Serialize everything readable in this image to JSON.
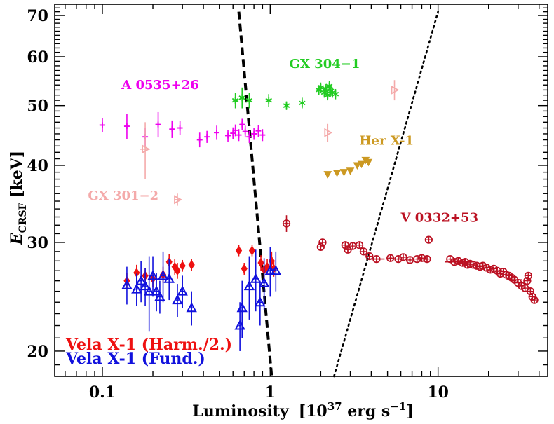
{
  "chart_data": {
    "type": "scatter",
    "xscale": "log",
    "yscale": "log",
    "xlim": [
      0.052,
      45
    ],
    "ylim": [
      18.2,
      73
    ],
    "xlabel_main": "Luminosity",
    "xlabel_unit": "[10",
    "xlabel_exp": "37",
    "xlabel_unit2": " erg s",
    "xlabel_exp2": "−1",
    "xlabel_close": "]",
    "ylabel_main": "E",
    "ylabel_sub": "CRSF",
    "ylabel_unit": " [keV]",
    "xticks": [
      {
        "value": 0.1,
        "label": "0.1"
      },
      {
        "value": 1,
        "label": "1"
      },
      {
        "value": 10,
        "label": "10"
      }
    ],
    "yticks": [
      {
        "value": 20,
        "label": "20"
      },
      {
        "value": 30,
        "label": "30"
      },
      {
        "value": 40,
        "label": "40"
      },
      {
        "value": 50,
        "label": "50"
      },
      {
        "value": 60,
        "label": "60"
      },
      {
        "value": 70,
        "label": "70"
      }
    ],
    "lines": [
      {
        "style": "dashed",
        "points": [
          [
            0.65,
            71
          ],
          [
            1.02,
            18.2
          ]
        ]
      },
      {
        "style": "dotted",
        "points": [
          [
            2.4,
            18.2
          ],
          [
            10.0,
            71
          ]
        ]
      }
    ],
    "series": [
      {
        "label": "A 0535+26",
        "color": "#ee00ee",
        "marker": "plus",
        "label_pos": [
          0.13,
          53.2
        ],
        "label_anchor": "start",
        "points": [
          [
            0.1,
            46.5,
            0.004,
            1.2
          ],
          [
            0.14,
            46.3,
            0.004,
            2.2
          ],
          [
            0.18,
            44.5,
            0.005,
            1.5
          ],
          [
            0.215,
            46.6,
            0.006,
            2.2
          ],
          [
            0.26,
            45.8,
            0.008,
            1.5
          ],
          [
            0.29,
            46.0,
            0.01,
            1.2
          ],
          [
            0.38,
            44.0,
            0.01,
            1.2
          ],
          [
            0.42,
            44.5,
            0.01,
            1.0
          ],
          [
            0.48,
            45.2,
            0.01,
            1.2
          ],
          [
            0.56,
            44.7,
            0.012,
            1.0
          ],
          [
            0.6,
            45.1,
            0.012,
            1.0
          ],
          [
            0.62,
            45.6,
            0.02,
            1.0
          ],
          [
            0.65,
            44.8,
            0.02,
            1.0
          ],
          [
            0.68,
            46.6,
            0.02,
            1.0
          ],
          [
            0.71,
            45.4,
            0.02,
            1.0
          ],
          [
            0.75,
            44.5,
            0.03,
            1.0
          ],
          [
            0.8,
            45.0,
            0.03,
            1.0
          ],
          [
            0.85,
            45.5,
            0.03,
            1.0
          ],
          [
            0.9,
            44.8,
            0.03,
            1.0
          ]
        ]
      },
      {
        "label": "GX 304−1",
        "color": "#22cc22",
        "marker": "star",
        "label_pos": [
          1.3,
          57.5
        ],
        "label_anchor": "start",
        "points": [
          [
            0.62,
            51.0,
            0.02,
            1.5
          ],
          [
            0.68,
            51.5,
            0.02,
            2.0
          ],
          [
            0.75,
            51.0,
            0.02,
            1.5
          ],
          [
            0.98,
            51.0,
            0.02,
            1.2
          ],
          [
            1.25,
            50.0,
            0.03,
            0.8
          ],
          [
            1.55,
            50.5,
            0.03,
            1.0
          ],
          [
            1.95,
            53.0,
            0.04,
            1.0
          ],
          [
            2.0,
            53.5,
            0.04,
            1.0
          ],
          [
            2.1,
            52.5,
            0.04,
            1.0
          ],
          [
            2.15,
            53.2,
            0.04,
            1.0
          ],
          [
            2.2,
            52.0,
            0.04,
            1.0
          ],
          [
            2.25,
            53.8,
            0.04,
            1.0
          ],
          [
            2.3,
            52.8,
            0.04,
            1.0
          ],
          [
            2.35,
            52.5,
            0.04,
            1.0
          ],
          [
            2.45,
            52.2,
            0.04,
            1.0
          ]
        ]
      },
      {
        "label": "Her X-1",
        "color": "#cc9922",
        "marker": "triangle-down",
        "label_pos": [
          3.4,
          43.2
        ],
        "label_anchor": "start",
        "points": [
          [
            2.2,
            38.7,
            0.05,
            0.4
          ],
          [
            2.5,
            38.9,
            0.05,
            0.4
          ],
          [
            2.75,
            39.0,
            0.05,
            0.4
          ],
          [
            3.0,
            39.2,
            0.05,
            0.4
          ],
          [
            3.3,
            40.0,
            0.05,
            0.4
          ],
          [
            3.5,
            40.2,
            0.05,
            0.4
          ],
          [
            3.7,
            40.8,
            0.05,
            0.4
          ],
          [
            3.85,
            40.5,
            0.05,
            0.4
          ]
        ]
      },
      {
        "label": "GX 301−2",
        "color": "#f4aaaa",
        "marker": "triangle-right",
        "label_pos": [
          0.082,
          35.2
        ],
        "label_anchor": "start",
        "points": [
          [
            0.18,
            42.5,
            0.012,
            4.5
          ],
          [
            0.28,
            35.2,
            0.008,
            0.8
          ],
          [
            2.2,
            45.2,
            0.02,
            1.5
          ],
          [
            5.5,
            53.0,
            0.02,
            2.0
          ]
        ]
      },
      {
        "label": "V 0332+53",
        "color": "#bb1122",
        "marker": "circle-plus",
        "label_pos": [
          6.0,
          32.4
        ],
        "label_anchor": "start",
        "points": [
          [
            1.25,
            32.2,
            0.02,
            1.0
          ],
          [
            2.0,
            29.5,
            0.02,
            0.4
          ],
          [
            2.05,
            30.0,
            0.02,
            0.4
          ],
          [
            2.8,
            29.7,
            0.03,
            0.3
          ],
          [
            2.9,
            29.2,
            0.03,
            0.3
          ],
          [
            3.1,
            29.6,
            0.03,
            0.3
          ],
          [
            3.4,
            29.7,
            0.03,
            0.3
          ],
          [
            3.6,
            29.0,
            0.03,
            0.3
          ],
          [
            3.9,
            28.5,
            0.03,
            0.3
          ],
          [
            4.3,
            28.2,
            0.5,
            0.3
          ],
          [
            5.2,
            28.3,
            0.1,
            0.3
          ],
          [
            5.8,
            28.2,
            0.1,
            0.3
          ],
          [
            6.2,
            28.4,
            0.1,
            0.3
          ],
          [
            6.8,
            28.1,
            0.1,
            0.3
          ],
          [
            7.5,
            28.2,
            0.1,
            0.3
          ],
          [
            8.0,
            28.3,
            0.1,
            0.3
          ],
          [
            8.6,
            28.2,
            0.1,
            0.3
          ],
          [
            8.8,
            30.3,
            0.1,
            0.4
          ],
          [
            11.8,
            28.2,
            0.2,
            0.3
          ],
          [
            12.5,
            27.9,
            1.5,
            0.3
          ],
          [
            13.2,
            28.0,
            0.2,
            0.3
          ],
          [
            14.0,
            27.8,
            0.2,
            0.3
          ],
          [
            14.5,
            27.9,
            0.2,
            0.3
          ],
          [
            15.0,
            27.6,
            0.2,
            0.3
          ],
          [
            15.5,
            27.7,
            0.2,
            0.3
          ],
          [
            16.2,
            27.6,
            0.2,
            0.3
          ],
          [
            17.0,
            27.5,
            0.2,
            0.3
          ],
          [
            17.8,
            27.4,
            0.2,
            0.3
          ],
          [
            18.5,
            27.5,
            0.2,
            0.3
          ],
          [
            19.5,
            27.3,
            0.2,
            0.3
          ],
          [
            20.5,
            27.1,
            0.2,
            0.3
          ],
          [
            21.5,
            27.2,
            0.2,
            0.3
          ],
          [
            22.5,
            27.0,
            0.2,
            0.3
          ],
          [
            23.5,
            26.7,
            0.2,
            0.3
          ],
          [
            24.5,
            26.9,
            0.2,
            0.3
          ],
          [
            25.5,
            26.6,
            0.2,
            0.3
          ],
          [
            26.5,
            26.5,
            0.2,
            0.3
          ],
          [
            27.5,
            26.3,
            0.2,
            0.3
          ],
          [
            28.5,
            26.1,
            3.0,
            0.3
          ],
          [
            30.0,
            25.8,
            0.2,
            0.3
          ],
          [
            31.5,
            25.5,
            0.2,
            0.3
          ],
          [
            33.0,
            25.3,
            0.2,
            0.3
          ],
          [
            34.0,
            26.0,
            0.2,
            0.3
          ],
          [
            34.5,
            26.5,
            0.2,
            0.3
          ],
          [
            35.5,
            25.0,
            0.2,
            0.3
          ],
          [
            36.5,
            24.5,
            0.2,
            0.3
          ],
          [
            37.5,
            24.2,
            0.2,
            0.3
          ]
        ]
      },
      {
        "label": "Vela X-1 (Harm./2.)",
        "color": "#ee1111",
        "marker": "diamond",
        "legend": true,
        "points": [
          [
            0.14,
            26.0,
            0.003,
            0.8
          ],
          [
            0.16,
            26.8,
            0.003,
            0.8
          ],
          [
            0.18,
            26.5,
            0.004,
            0.8
          ],
          [
            0.2,
            26.2,
            0.004,
            0.8
          ],
          [
            0.23,
            26.6,
            0.004,
            0.8
          ],
          [
            0.25,
            27.9,
            0.005,
            0.8
          ],
          [
            0.27,
            27.4,
            0.005,
            0.8
          ],
          [
            0.28,
            27.0,
            0.005,
            0.8
          ],
          [
            0.3,
            27.5,
            0.006,
            0.6
          ],
          [
            0.34,
            27.6,
            0.007,
            0.6
          ],
          [
            0.65,
            29.1,
            0.012,
            0.6
          ],
          [
            0.7,
            27.2,
            0.012,
            0.6
          ],
          [
            0.78,
            29.1,
            0.015,
            0.6
          ],
          [
            0.88,
            27.8,
            0.02,
            0.8
          ],
          [
            0.92,
            27.1,
            0.02,
            0.8
          ],
          [
            0.96,
            27.4,
            0.02,
            0.8
          ],
          [
            1.02,
            28.0,
            0.02,
            1.0
          ],
          [
            1.05,
            27.2,
            0.02,
            0.8
          ]
        ]
      },
      {
        "label": "Vela X-1 (Fund.)",
        "color": "#1111dd",
        "marker": "triangle-up",
        "legend": true,
        "points": [
          [
            0.14,
            25.6,
            0.003,
            1.8
          ],
          [
            0.16,
            25.2,
            0.003,
            1.5
          ],
          [
            0.17,
            26.0,
            0.003,
            2.0
          ],
          [
            0.18,
            25.5,
            0.004,
            1.8
          ],
          [
            0.19,
            25.0,
            0.004,
            3.5
          ],
          [
            0.2,
            26.5,
            0.004,
            2.0
          ],
          [
            0.21,
            25.0,
            0.004,
            1.8
          ],
          [
            0.22,
            24.5,
            0.005,
            1.5
          ],
          [
            0.23,
            26.5,
            0.005,
            2.5
          ],
          [
            0.25,
            26.2,
            0.005,
            2.0
          ],
          [
            0.28,
            24.2,
            0.006,
            1.5
          ],
          [
            0.3,
            25.0,
            0.006,
            1.5
          ],
          [
            0.34,
            23.5,
            0.008,
            1.5
          ],
          [
            0.66,
            22.0,
            0.012,
            2.0
          ],
          [
            0.68,
            23.5,
            0.012,
            2.5
          ],
          [
            0.75,
            25.5,
            0.015,
            3.0
          ],
          [
            0.82,
            26.2,
            0.02,
            3.0
          ],
          [
            0.87,
            24.0,
            0.02,
            2.0
          ],
          [
            0.92,
            25.8,
            0.02,
            2.5
          ],
          [
            1.0,
            27.0,
            0.02,
            2.5
          ],
          [
            1.08,
            27.0,
            0.02,
            2.0
          ]
        ]
      }
    ]
  }
}
